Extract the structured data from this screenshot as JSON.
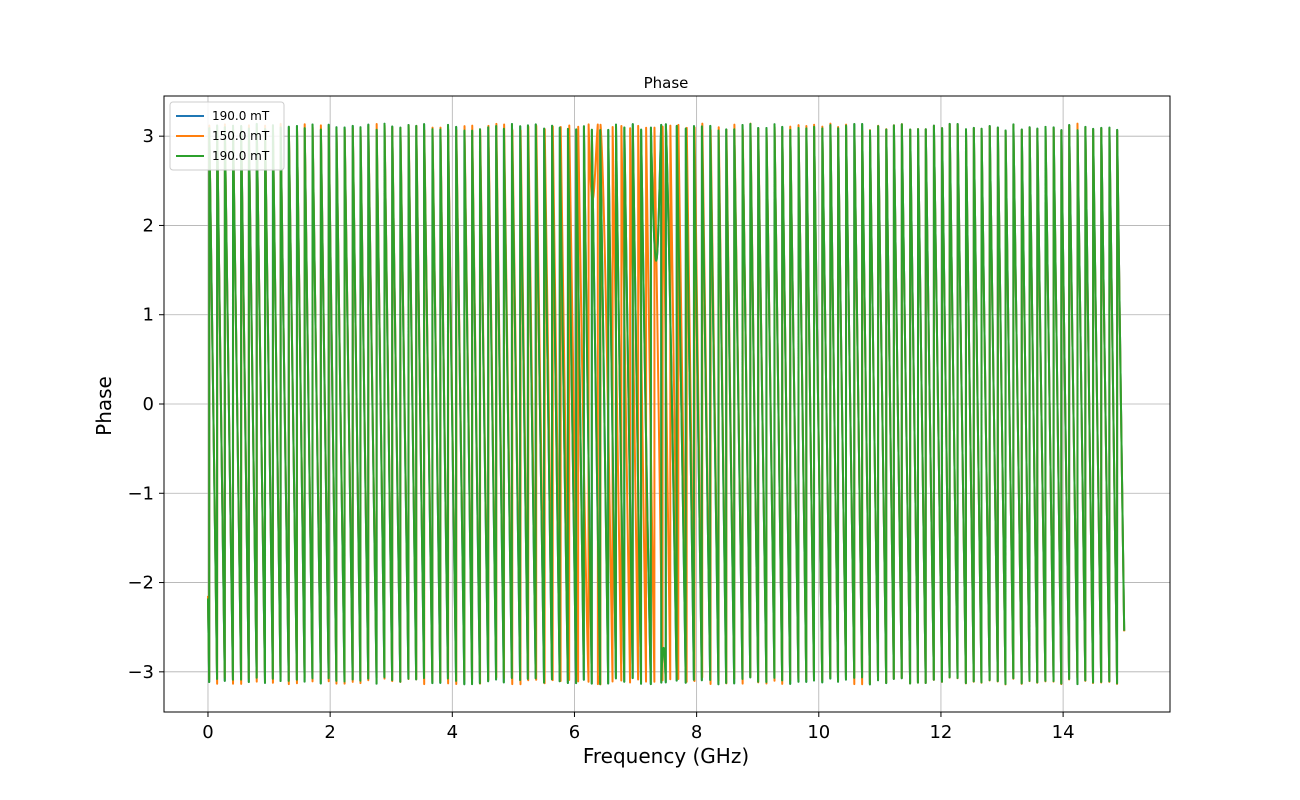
{
  "chart_data": {
    "type": "line",
    "title": "Phase",
    "xlabel": "Frequency (GHz)",
    "ylabel": "Phase",
    "xlim": [
      -0.72,
      15.75
    ],
    "ylim": [
      -3.45,
      3.45
    ],
    "xticks": [
      0,
      2,
      4,
      6,
      8,
      10,
      12,
      14
    ],
    "xtick_labels": [
      "0",
      "2",
      "4",
      "6",
      "8",
      "10",
      "12",
      "14"
    ],
    "yticks": [
      -3,
      -2,
      -1,
      0,
      1,
      2,
      3
    ],
    "ytick_labels": [
      "−3",
      "−2",
      "−1",
      "0",
      "1",
      "2",
      "3"
    ],
    "grid": true,
    "legend_position": "top-left",
    "x_range_of_data": [
      0,
      15
    ],
    "phase_wrapping": "values wrap between -pi and +pi",
    "wrap_count_over_range": 115,
    "series": [
      {
        "name": "190.0 mT",
        "color": "#1f77b4",
        "resonance_region_ghz": [
          7.2,
          7.6
        ]
      },
      {
        "name": "150.0 mT",
        "color": "#ff7f0e",
        "resonance_region_ghz": [
          6.1,
          6.6
        ]
      },
      {
        "name": "190.0 mT",
        "color": "#2ca02c",
        "resonance_region_ghz": [
          7.2,
          7.6
        ]
      }
    ]
  }
}
